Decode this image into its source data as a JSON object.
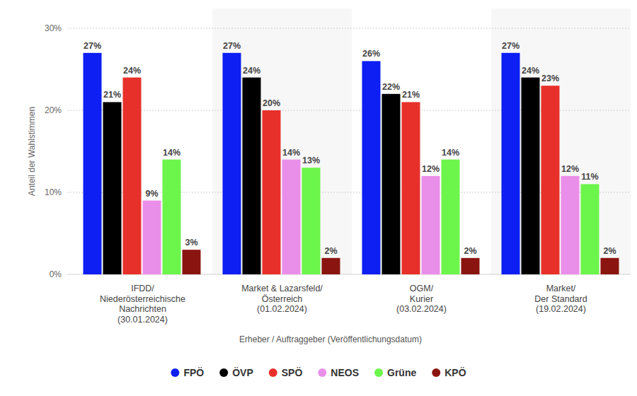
{
  "chart_data": {
    "type": "bar",
    "categories": [
      "IFDD/\nNiederösterreichische\nNachrichten\n(30.01.2024)",
      "Market & Lazarsfeld/\nÖsterreich\n(01.02.2024)",
      "OGM/\nKurier\n(03.02.2024)",
      "Market/\nDer Standard\n(19.02.2024)"
    ],
    "series": [
      {
        "name": "FPÖ",
        "color": "#0d1ff2",
        "values": [
          27,
          27,
          26,
          27
        ],
        "value_labels": [
          "27%",
          "27%",
          "26%",
          "27%"
        ]
      },
      {
        "name": "ÖVP",
        "color": "#000000",
        "values": [
          21,
          24,
          22,
          24
        ],
        "value_labels": [
          "21%",
          "24%",
          "22%",
          "24%"
        ]
      },
      {
        "name": "SPÖ",
        "color": "#e8302a",
        "values": [
          24,
          20,
          21,
          23
        ],
        "value_labels": [
          "24%",
          "20%",
          "21%",
          "23%"
        ]
      },
      {
        "name": "NEOS",
        "color": "#ea8fe9",
        "values": [
          9,
          14,
          12,
          12
        ],
        "value_labels": [
          "9%",
          "14%",
          "12%",
          "12%"
        ]
      },
      {
        "name": "Grüne",
        "color": "#6cf54a",
        "values": [
          14,
          13,
          14,
          11
        ],
        "value_labels": [
          "14%",
          "13%",
          "14%",
          "11%"
        ]
      },
      {
        "name": "KPÖ",
        "color": "#8a1510",
        "values": [
          3,
          2,
          2,
          2
        ],
        "value_labels": [
          "3%",
          "2%",
          "2%",
          "2%"
        ]
      }
    ],
    "x_label": "Erheber / Auftraggeber (Veröffentlichungsdatum)",
    "y_label": "Anteil der Wahlstimmen",
    "ylim": [
      0,
      30
    ],
    "yticks": [
      {
        "value": 0,
        "label": "0%"
      },
      {
        "value": 10,
        "label": "10%"
      },
      {
        "value": 20,
        "label": "20%"
      },
      {
        "value": 30,
        "label": "30%"
      }
    ],
    "grid": true,
    "legend": "bottom",
    "data_labels": true
  }
}
